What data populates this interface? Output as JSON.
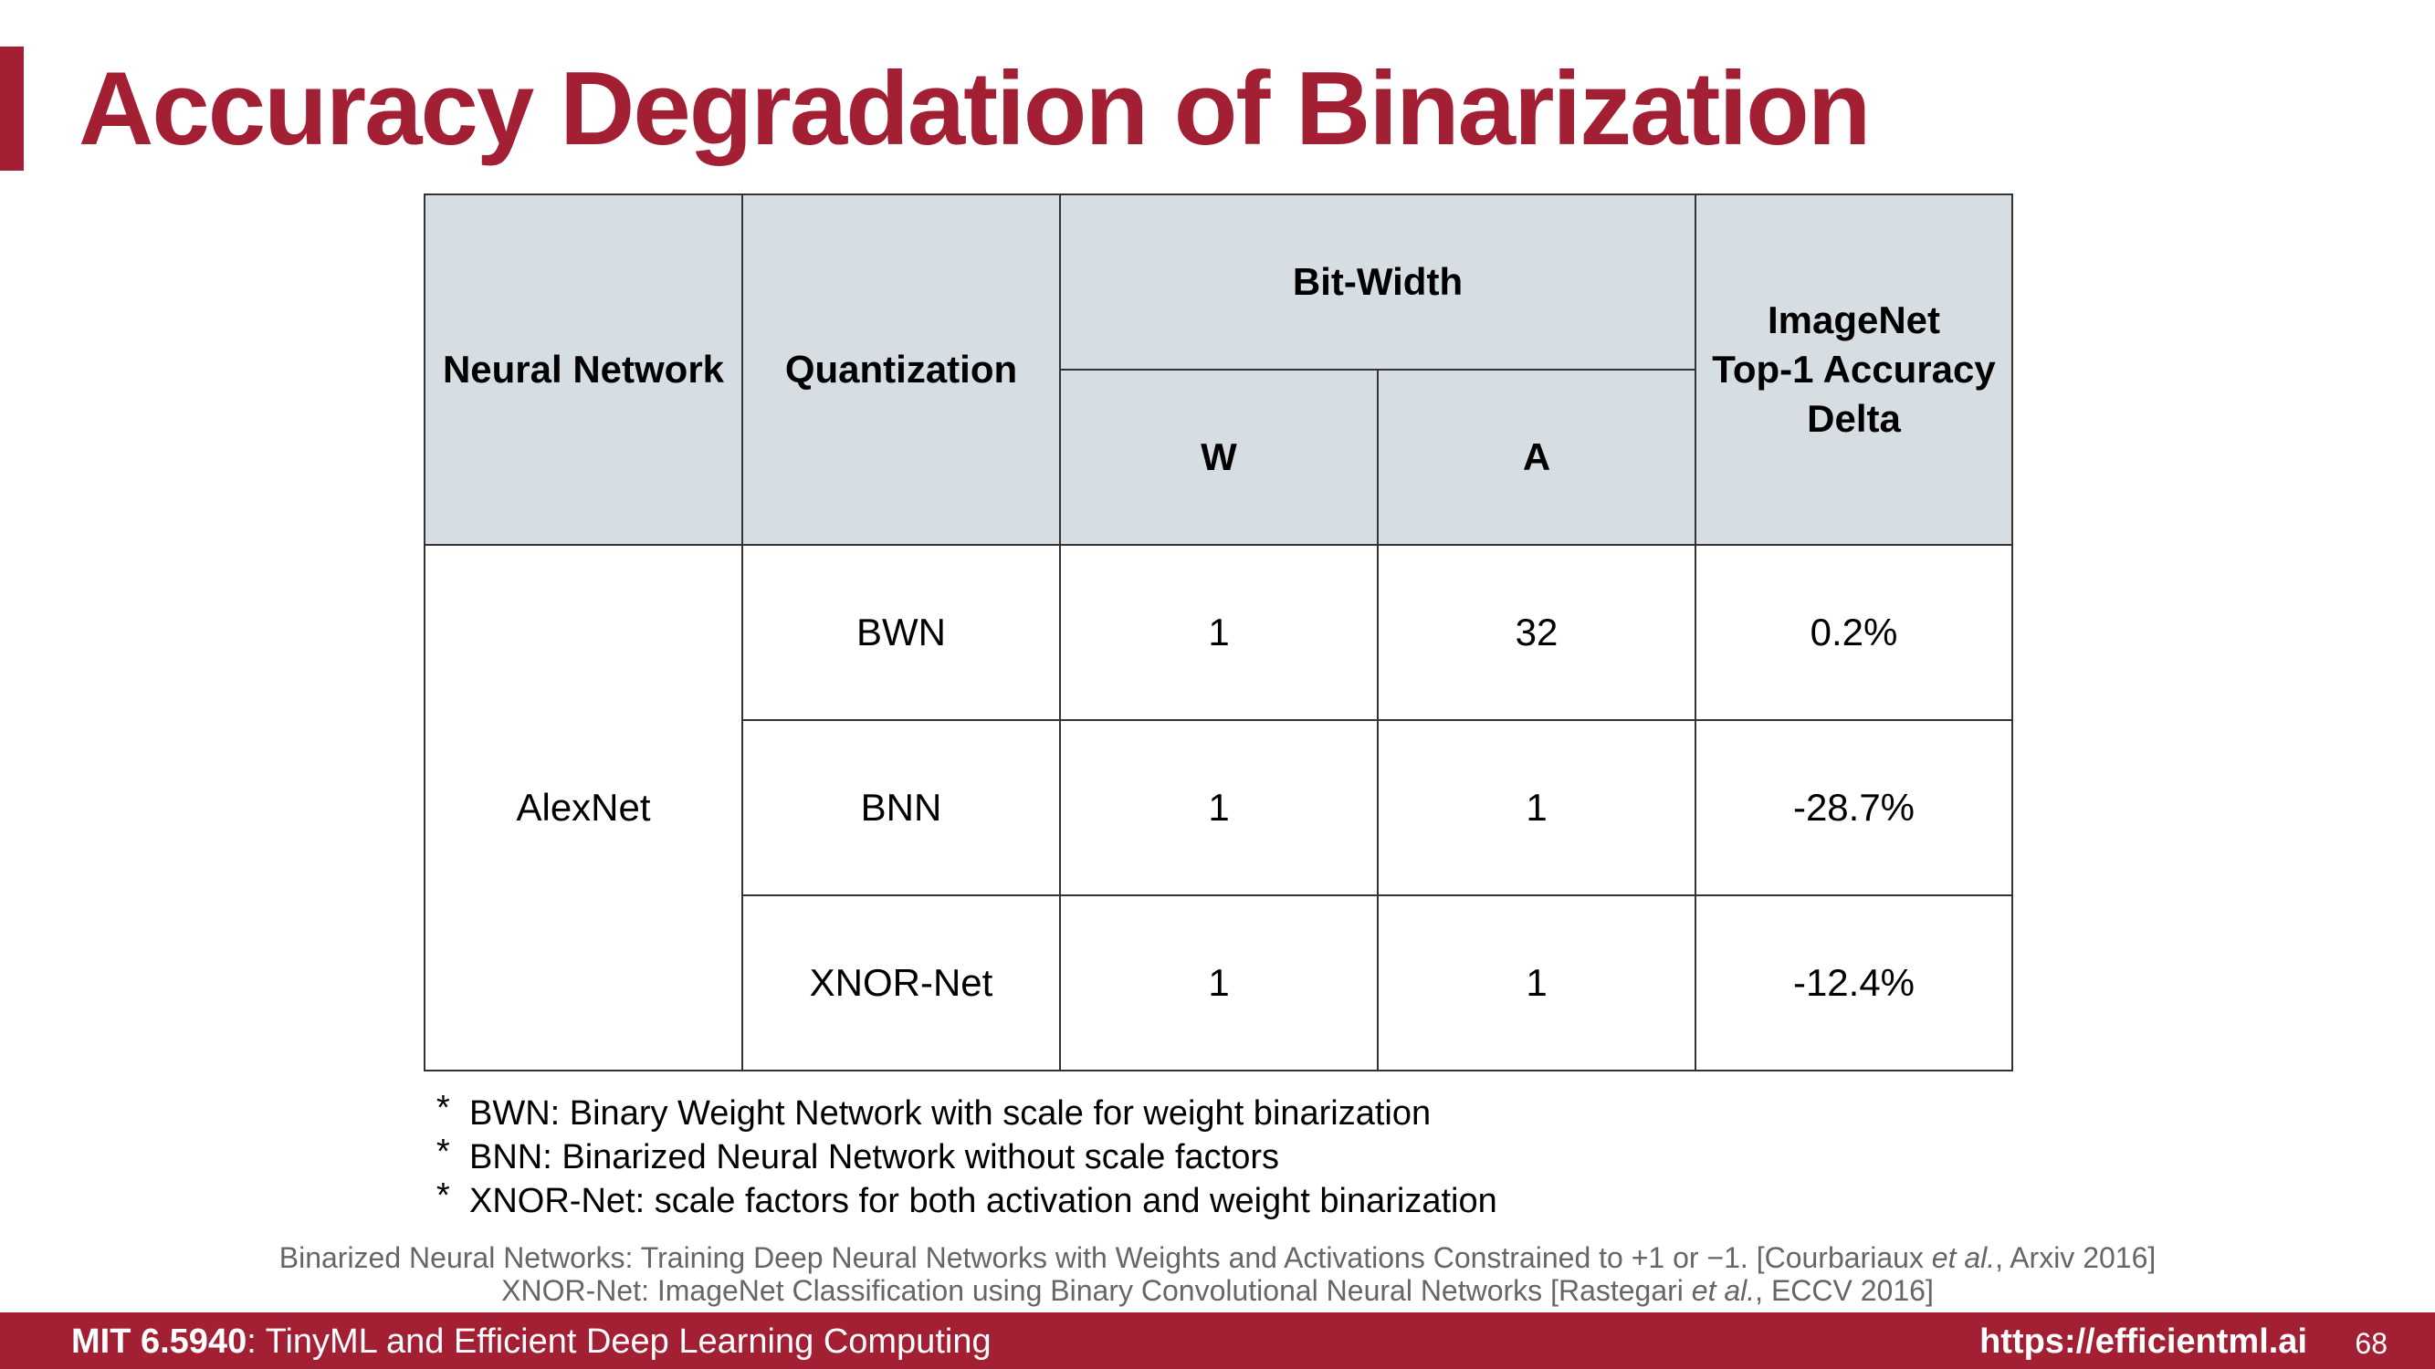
{
  "title": "Accuracy Degradation of Binarization",
  "table": {
    "headers": {
      "neural_network": "Neural Network",
      "quantization": "Quantization",
      "bit_width": "Bit-Width",
      "w": "W",
      "a": "A",
      "accuracy_line1": "ImageNet",
      "accuracy_line2": "Top-1 Accuracy",
      "accuracy_line3": "Delta"
    },
    "network": "AlexNet",
    "rows": [
      {
        "quantization": "BWN",
        "w": "1",
        "a": "32",
        "delta": "0.2%"
      },
      {
        "quantization": "BNN",
        "w": "1",
        "a": "1",
        "delta": "-28.7%"
      },
      {
        "quantization": "XNOR-Net",
        "w": "1",
        "a": "1",
        "delta": "-12.4%"
      }
    ]
  },
  "notes": [
    {
      "marker": "*",
      "text": "BWN: Binary Weight Network with scale for weight binarization"
    },
    {
      "marker": "*",
      "text": "BNN: Binarized Neural Network without scale factors"
    },
    {
      "marker": "*",
      "text": "XNOR-Net: scale factors for both activation and weight binarization"
    }
  ],
  "references": [
    {
      "before": "Binarized Neural Networks: Training Deep Neural Networks with Weights and Activations Constrained to +1 or −1. [Courbariaux ",
      "etal": "et al.",
      "after": ", Arxiv 2016]"
    },
    {
      "before": "XNOR-Net: ImageNet Classification using Binary Convolutional Neural Networks [Rastegari ",
      "etal": "et al.",
      "after": ", ECCV 2016]"
    }
  ],
  "footer": {
    "course_code": "MIT 6.5940",
    "course_name": ": TinyML and Efficient Deep Learning Computing",
    "url": "https://efficientml.ai",
    "page_number": "68"
  },
  "colors": {
    "accent": "#a31f34",
    "header_fill": "#d6dde3",
    "reference_text": "#666666"
  }
}
